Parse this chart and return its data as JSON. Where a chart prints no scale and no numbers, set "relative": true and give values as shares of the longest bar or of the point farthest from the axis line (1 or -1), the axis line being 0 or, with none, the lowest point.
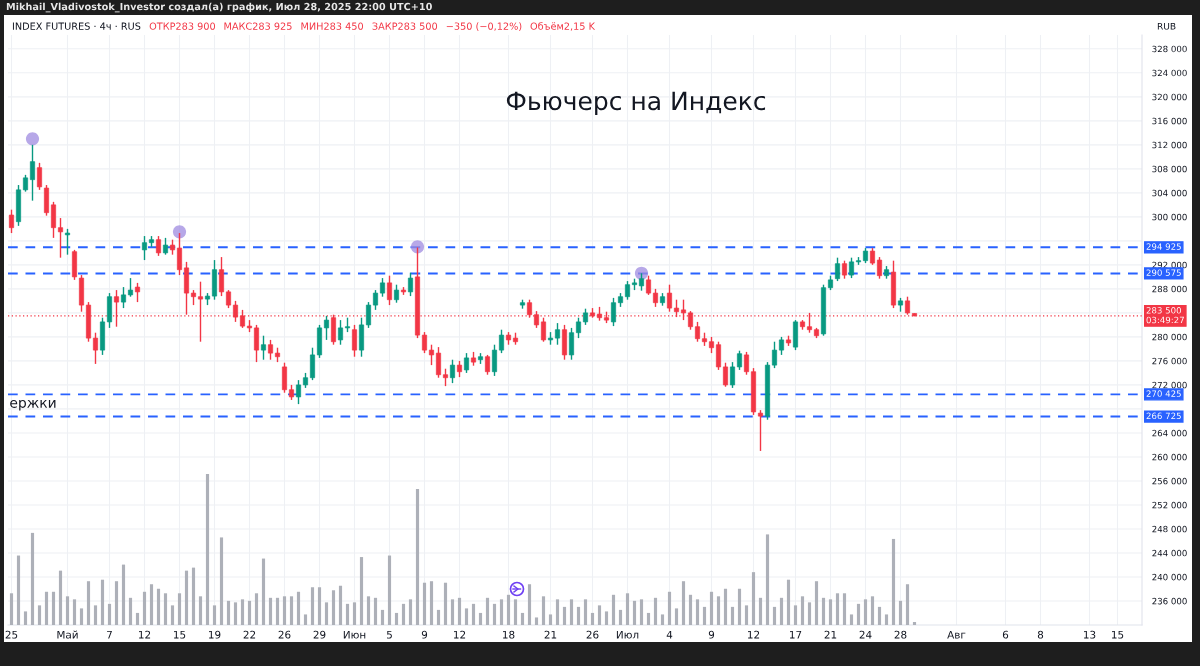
{
  "chart_data": [
    {
      "type": "candlestick",
      "title": "Фьючерс на Индекс",
      "ylabel": "RUB",
      "categories": [
        "25",
        null,
        null,
        null,
        null,
        null,
        null,
        null,
        "Май",
        null,
        null,
        null,
        null,
        null,
        "7",
        null,
        null,
        null,
        null,
        "12",
        null,
        null,
        null,
        null,
        "15",
        null,
        null,
        null,
        null,
        "19",
        null,
        null,
        null,
        null,
        "22",
        null,
        null,
        null,
        null,
        "26",
        null,
        null,
        null,
        null,
        "29",
        null,
        null,
        null,
        null,
        "Июн",
        null,
        null,
        null,
        null,
        "5",
        null,
        null,
        null,
        null,
        "9",
        null,
        null,
        null,
        null,
        "12",
        null,
        null,
        null,
        null,
        null,
        null,
        "18",
        null,
        null,
        null,
        null,
        null,
        "21",
        null,
        null,
        null,
        null,
        null,
        "26",
        null,
        null,
        null,
        null,
        "Июл",
        null,
        null,
        null,
        null,
        null,
        "4",
        null,
        null,
        null,
        null,
        null,
        "9",
        null,
        null,
        null,
        null,
        null,
        "12",
        null,
        null,
        null,
        null,
        null,
        "17",
        null,
        null,
        null,
        null,
        "21",
        null,
        null,
        null,
        null,
        "24",
        null,
        null,
        null,
        null,
        "28",
        null,
        null,
        null,
        null,
        null,
        null,
        null,
        "Авг",
        null,
        null,
        null,
        null,
        null,
        null,
        "6",
        null,
        null,
        null,
        null,
        "8",
        null,
        null,
        null,
        null,
        null,
        null,
        "13",
        null,
        null,
        null,
        "15",
        null,
        null,
        null
      ],
      "ohlc": [
        [
          300300,
          301200,
          297300,
          298200
        ],
        [
          299200,
          305300,
          298500,
          304500
        ],
        [
          304500,
          307000,
          304200,
          306500
        ],
        [
          306200,
          312000,
          302700,
          309200
        ],
        [
          308200,
          309000,
          304500,
          305000
        ],
        [
          304800,
          305300,
          300200,
          300700
        ],
        [
          302000,
          302500,
          296500,
          298200
        ],
        [
          298200,
          299800,
          293200,
          297500
        ],
        [
          297000,
          298000,
          293700,
          297300
        ],
        [
          294200,
          294500,
          289500,
          290000
        ],
        [
          289800,
          290300,
          284200,
          285300
        ],
        [
          285300,
          285800,
          279200,
          279800
        ],
        [
          279800,
          280700,
          275500,
          277800
        ],
        [
          277800,
          283200,
          277000,
          282500
        ],
        [
          282500,
          287300,
          281500,
          286700
        ],
        [
          286700,
          287800,
          281700,
          285800
        ],
        [
          285800,
          288300,
          284800,
          287000
        ],
        [
          287000,
          289800,
          286700,
          287800
        ],
        [
          288300,
          289000,
          285800,
          287500
        ],
        [
          294500,
          296800,
          292800,
          295700
        ],
        [
          295700,
          296800,
          295000,
          296200
        ],
        [
          296200,
          296800,
          293500,
          294000
        ],
        [
          294000,
          296500,
          293700,
          295300
        ],
        [
          295300,
          296200,
          293700,
          294500
        ],
        [
          294800,
          297300,
          290300,
          291200
        ],
        [
          291500,
          292500,
          283700,
          287300
        ],
        [
          287300,
          287800,
          285300,
          286700
        ],
        [
          286700,
          289200,
          279200,
          286300
        ],
        [
          286300,
          287300,
          285300,
          286800
        ],
        [
          286800,
          292800,
          286200,
          291200
        ],
        [
          291200,
          293300,
          286800,
          287500
        ],
        [
          287500,
          287800,
          284800,
          285300
        ],
        [
          285300,
          286000,
          282500,
          283300
        ],
        [
          283500,
          284500,
          281500,
          281800
        ],
        [
          281800,
          282800,
          280800,
          281500
        ],
        [
          281500,
          282000,
          275800,
          277800
        ],
        [
          277800,
          280200,
          276200,
          278700
        ],
        [
          278700,
          279500,
          276200,
          277300
        ],
        [
          277300,
          278200,
          275800,
          276700
        ],
        [
          275000,
          275700,
          270700,
          271200
        ],
        [
          271200,
          272000,
          269500,
          270000
        ],
        [
          270000,
          272800,
          268800,
          272000
        ],
        [
          272000,
          274000,
          271500,
          273200
        ],
        [
          273200,
          278200,
          272800,
          277000
        ],
        [
          277000,
          282000,
          276500,
          281500
        ],
        [
          281500,
          283500,
          279500,
          282800
        ],
        [
          283200,
          283700,
          278700,
          279200
        ],
        [
          279500,
          282800,
          278700,
          281500
        ],
        [
          281500,
          283200,
          280800,
          281700
        ],
        [
          281200,
          282000,
          276700,
          277800
        ],
        [
          277800,
          283200,
          276700,
          282000
        ],
        [
          282000,
          285800,
          281500,
          285300
        ],
        [
          285300,
          287800,
          284500,
          287300
        ],
        [
          287300,
          289800,
          286700,
          289000
        ],
        [
          289000,
          290200,
          285300,
          286200
        ],
        [
          286200,
          288700,
          285700,
          287800
        ],
        [
          287800,
          288300,
          287000,
          287500
        ],
        [
          287500,
          290700,
          286800,
          289800
        ],
        [
          290000,
          294900,
          279800,
          280300
        ],
        [
          280300,
          280800,
          277300,
          277800
        ],
        [
          277800,
          278700,
          275300,
          277000
        ],
        [
          277300,
          278300,
          273200,
          273700
        ],
        [
          273700,
          274700,
          271800,
          273200
        ],
        [
          273200,
          276200,
          272300,
          275300
        ],
        [
          275300,
          276000,
          273300,
          274200
        ],
        [
          274500,
          277300,
          274000,
          276500
        ],
        [
          276500,
          277500,
          275200,
          275800
        ],
        [
          276200,
          277300,
          275500,
          276700
        ],
        [
          276700,
          277000,
          273700,
          274200
        ],
        [
          274200,
          278700,
          273500,
          277800
        ],
        [
          277800,
          281200,
          277300,
          280300
        ],
        [
          280300,
          280800,
          278700,
          279500
        ],
        [
          279800,
          280700,
          278700,
          279200
        ],
        [
          285300,
          286200,
          284700,
          285700
        ],
        [
          285700,
          286200,
          283200,
          283700
        ],
        [
          283700,
          284300,
          281500,
          282000
        ],
        [
          282500,
          283200,
          279200,
          279500
        ],
        [
          279500,
          280800,
          278700,
          279800
        ],
        [
          279800,
          282300,
          278700,
          281200
        ],
        [
          281200,
          282000,
          276200,
          277000
        ],
        [
          277000,
          281500,
          276200,
          280700
        ],
        [
          280700,
          283200,
          279800,
          282500
        ],
        [
          282500,
          284700,
          282000,
          284000
        ],
        [
          284000,
          284800,
          283200,
          283500
        ],
        [
          283800,
          285000,
          282700,
          283200
        ],
        [
          283200,
          284200,
          282300,
          282800
        ],
        [
          282500,
          286500,
          281800,
          285700
        ],
        [
          285700,
          287300,
          285000,
          286700
        ],
        [
          286700,
          289300,
          286200,
          288700
        ],
        [
          288700,
          289700,
          287800,
          289000
        ],
        [
          288500,
          290600,
          287700,
          289700
        ],
        [
          289500,
          290200,
          287000,
          287300
        ],
        [
          287300,
          288000,
          285000,
          285700
        ],
        [
          285700,
          287300,
          285200,
          286700
        ],
        [
          287300,
          288700,
          284200,
          284800
        ],
        [
          284800,
          286200,
          283300,
          284200
        ],
        [
          284500,
          286200,
          282800,
          284000
        ],
        [
          284000,
          284300,
          281200,
          281700
        ],
        [
          281700,
          282500,
          279200,
          279700
        ],
        [
          279700,
          280700,
          278500,
          279200
        ],
        [
          279200,
          280000,
          277300,
          278200
        ],
        [
          278700,
          279200,
          274500,
          275000
        ],
        [
          275000,
          275700,
          271700,
          272000
        ],
        [
          272000,
          275800,
          271500,
          275000
        ],
        [
          275000,
          277700,
          274500,
          277200
        ],
        [
          277000,
          277500,
          273700,
          274200
        ],
        [
          274200,
          274800,
          267000,
          267500
        ],
        [
          267300,
          267800,
          261000,
          266800
        ],
        [
          266800,
          275800,
          266200,
          275300
        ],
        [
          275300,
          279200,
          274800,
          277800
        ],
        [
          277800,
          280000,
          277000,
          279500
        ],
        [
          279500,
          280200,
          278500,
          279000
        ],
        [
          278300,
          282800,
          277800,
          282500
        ],
        [
          282500,
          282800,
          281200,
          281700
        ],
        [
          281700,
          284000,
          280700,
          281200
        ],
        [
          281200,
          281500,
          279800,
          280200
        ],
        [
          280500,
          288700,
          280200,
          288200
        ],
        [
          288200,
          290200,
          287800,
          289500
        ],
        [
          289700,
          293200,
          289300,
          292200
        ],
        [
          292200,
          292700,
          289700,
          290300
        ],
        [
          290300,
          293200,
          289800,
          292500
        ],
        [
          292500,
          293300,
          292000,
          292700
        ],
        [
          292700,
          294800,
          292300,
          294300
        ],
        [
          294300,
          294800,
          292000,
          292300
        ],
        [
          292800,
          293300,
          289700,
          290200
        ],
        [
          290200,
          291800,
          289700,
          291200
        ],
        [
          290800,
          292700,
          284800,
          285300
        ],
        [
          285300,
          286500,
          284200,
          286000
        ],
        [
          286000,
          286700,
          283700,
          284000
        ],
        [
          283900,
          283925,
          283450,
          283500
        ],
        null,
        null,
        null,
        null,
        null,
        null,
        null,
        null,
        null,
        null,
        null,
        null,
        null,
        null,
        null,
        null,
        null,
        null,
        null,
        null,
        null,
        null,
        null,
        null,
        null,
        null,
        null,
        null,
        null,
        null,
        null,
        null
      ],
      "colors": [
        "#f23645",
        "#089981",
        "#089981",
        "#089981",
        "#f23645",
        "#f23645",
        "#f23645",
        "#f23645",
        "#089981",
        "#f23645",
        "#f23645",
        "#f23645",
        "#f23645",
        "#089981",
        "#089981",
        "#f23645",
        "#089981",
        "#089981",
        "#f23645",
        "#089981",
        "#089981",
        "#f23645",
        "#089981",
        "#f23645",
        "#f23645",
        "#f23645",
        "#f23645",
        "#f23645",
        "#089981",
        "#089981",
        "#f23645",
        "#f23645",
        "#f23645",
        "#f23645",
        "#f23645",
        "#f23645",
        "#089981",
        "#f23645",
        "#f23645",
        "#f23645",
        "#f23645",
        "#089981",
        "#089981",
        "#089981",
        "#089981",
        "#089981",
        "#f23645",
        "#089981",
        "#089981",
        "#f23645",
        "#089981",
        "#089981",
        "#089981",
        "#089981",
        "#f23645",
        "#089981",
        "#f23645",
        "#089981",
        "#f23645",
        "#f23645",
        "#f23645",
        "#f23645",
        "#f23645",
        "#089981",
        "#f23645",
        "#089981",
        "#f23645",
        "#089981",
        "#f23645",
        "#089981",
        "#089981",
        "#f23645",
        "#f23645",
        "#089981",
        "#f23645",
        "#f23645",
        "#f23645",
        "#089981",
        "#089981",
        "#f23645",
        "#089981",
        "#089981",
        "#089981",
        "#f23645",
        "#f23645",
        "#f23645",
        "#089981",
        "#089981",
        "#089981",
        "#089981",
        "#089981",
        "#f23645",
        "#f23645",
        "#089981",
        "#f23645",
        "#f23645",
        "#f23645",
        "#f23645",
        "#f23645",
        "#f23645",
        "#f23645",
        "#f23645",
        "#f23645",
        "#089981",
        "#089981",
        "#f23645",
        "#f23645",
        "#f23645",
        "#089981",
        "#089981",
        "#089981",
        "#f23645",
        "#089981",
        "#f23645",
        "#f23645",
        "#f23645",
        "#089981",
        "#089981",
        "#089981",
        "#f23645",
        "#089981",
        "#089981",
        "#089981",
        "#f23645",
        "#f23645",
        "#089981",
        "#f23645",
        "#089981",
        "#f23645",
        "#f23645",
        null,
        null,
        null,
        null,
        null,
        null,
        null,
        null,
        null,
        null,
        null,
        null,
        null,
        null,
        null,
        null,
        null,
        null,
        null,
        null,
        null,
        null,
        null,
        null,
        null,
        null,
        null,
        null,
        null,
        null,
        null,
        null
      ],
      "series": [
        {
          "type": "scatter",
          "color": "#9f8be0",
          "marker": "circle",
          "values": [
            null,
            null,
            null,
            313000,
            null,
            null,
            null,
            null,
            null,
            null,
            null,
            null,
            null,
            null,
            null,
            null,
            null,
            null,
            null,
            null,
            null,
            null,
            null,
            null,
            297500,
            null,
            null,
            null,
            null,
            null,
            null,
            null,
            null,
            null,
            null,
            null,
            null,
            null,
            null,
            null,
            null,
            null,
            null,
            null,
            null,
            null,
            null,
            null,
            null,
            null,
            null,
            null,
            null,
            null,
            null,
            null,
            null,
            null,
            295000,
            null,
            null,
            null,
            null,
            null,
            null,
            null,
            null,
            null,
            null,
            null,
            null,
            null,
            null,
            null,
            null,
            null,
            null,
            null,
            null,
            null,
            null,
            null,
            null,
            null,
            null,
            null,
            null,
            null,
            null,
            null,
            290600,
            null,
            null,
            null,
            null,
            null,
            null,
            null,
            null,
            null,
            null,
            null,
            null,
            null,
            null,
            null,
            null,
            null,
            null,
            null,
            null,
            null,
            null,
            null,
            null,
            null,
            null,
            null,
            null,
            null,
            null,
            null,
            null,
            null,
            null,
            null,
            null,
            null,
            null,
            null,
            null,
            null,
            null,
            null,
            null,
            null,
            null,
            null,
            null,
            null,
            null,
            null,
            null,
            null,
            null,
            null,
            null,
            null,
            null,
            null,
            null,
            null,
            null,
            null,
            null,
            null,
            null,
            null,
            null,
            null,
            null,
            null
          ]
        }
      ],
      "ylim": [
        232000,
        330300
      ],
      "yticks": [
        {
          "value": 236000,
          "label": "236 000"
        },
        {
          "value": 240000,
          "label": "240 000"
        },
        {
          "value": 244000,
          "label": "244 000"
        },
        {
          "value": 248000,
          "label": "248 000"
        },
        {
          "value": 252000,
          "label": "252 000"
        },
        {
          "value": 256000,
          "label": "256 000"
        },
        {
          "value": 260000,
          "label": "260 000"
        },
        {
          "value": 264000,
          "label": "264 000"
        },
        {
          "value": 268000,
          "label": null
        },
        {
          "value": 272000,
          "label": "272 000"
        },
        {
          "value": 276000,
          "label": "276 000"
        },
        {
          "value": 280000,
          "label": "280 000"
        },
        {
          "value": 284000,
          "label": null
        },
        {
          "value": 288000,
          "label": "288 000"
        },
        {
          "value": 292000,
          "label": "292 000"
        },
        {
          "value": 296000,
          "label": null
        },
        {
          "value": 300000,
          "label": "300 000"
        },
        {
          "value": 304000,
          "label": "304 000"
        },
        {
          "value": 308000,
          "label": "308 000"
        },
        {
          "value": 312000,
          "label": "312 000"
        },
        {
          "value": 316000,
          "label": "316 000"
        },
        {
          "value": 320000,
          "label": "320 000"
        },
        {
          "value": 324000,
          "label": "324 000"
        },
        {
          "value": 328000,
          "label": "328 000"
        }
      ],
      "grid": true,
      "ref_lines": [
        {
          "axis": "y",
          "value": 294925,
          "label": "294 925",
          "color": "#2962ff",
          "line_style": "dashed"
        },
        {
          "axis": "y",
          "value": 290575,
          "label": "290 575",
          "color": "#2962ff",
          "line_style": "dashed"
        },
        {
          "axis": "y",
          "value": 283500,
          "label": "283 500\n03:49:27",
          "color": "#f23645",
          "line_style": "dotted"
        },
        {
          "axis": "y",
          "value": 270425,
          "label": "270 425",
          "color": "#2962ff",
          "line_style": "dashed"
        },
        {
          "axis": "y",
          "value": 266725,
          "label": "266 725",
          "color": "#2962ff",
          "line_style": "dashed"
        }
      ],
      "annotations": [
        "Mikhail_Vladivostok_Investor создал(а) график, Июл 28, 2025 22:00 UTC+10",
        "INDEX FUTURES · 4ч · RUS",
        "ОТКР283 900",
        "МАКС283 925",
        "МИН283 450",
        "ЗАКР283 500",
        "−350 (−0,12%)",
        "Объём2,15 K",
        {
          "text": "ержки",
          "y": 270425
        }
      ]
    },
    {
      "type": "bar",
      "relative": true,
      "color": "#adb0b8",
      "categories": [
        null,
        null,
        null,
        null,
        null,
        null,
        null,
        null,
        null,
        null,
        null,
        null,
        null,
        null,
        null,
        null,
        null,
        null,
        null,
        null,
        null,
        null,
        null,
        null,
        null,
        null,
        null,
        null,
        null,
        null,
        null,
        null,
        null,
        null,
        null,
        null,
        null,
        null,
        null,
        null,
        null,
        null,
        null,
        null,
        null,
        null,
        null,
        null,
        null,
        null,
        null,
        null,
        null,
        null,
        null,
        null,
        null,
        null,
        null,
        null,
        null,
        null,
        null,
        null,
        null,
        null,
        null,
        null,
        null,
        null,
        null,
        null,
        null,
        null,
        null,
        null,
        null,
        null,
        null,
        null,
        null,
        null,
        null,
        null,
        null,
        null,
        null,
        null,
        null,
        null,
        null,
        null,
        null,
        null,
        null,
        null,
        null,
        null,
        null,
        null,
        null,
        null,
        null,
        null,
        null,
        null,
        null,
        null,
        null,
        null,
        null,
        null,
        null,
        null,
        null,
        null,
        null,
        null,
        null,
        null,
        null,
        null,
        null,
        null,
        null,
        null,
        null,
        null,
        null,
        null,
        null,
        null,
        null,
        null,
        null,
        null,
        null,
        null,
        null,
        null,
        null,
        null,
        null,
        null,
        null,
        null,
        null,
        null,
        null,
        null,
        null,
        null,
        null,
        null,
        null,
        null,
        null,
        null,
        null,
        null,
        null,
        null
      ],
      "values": [
        0.21,
        0.46,
        0.09,
        0.61,
        0.13,
        0.22,
        0.22,
        0.36,
        0.19,
        0.17,
        0.11,
        0.29,
        0.13,
        0.3,
        0.14,
        0.29,
        0.4,
        0.18,
        0.08,
        0.22,
        0.27,
        0.24,
        0.21,
        0.13,
        0.21,
        0.36,
        0.38,
        0.19,
        1.0,
        0.13,
        0.58,
        0.16,
        0.15,
        0.17,
        0.16,
        0.21,
        0.44,
        0.18,
        0.18,
        0.19,
        0.19,
        0.22,
        0.07,
        0.25,
        0.25,
        0.15,
        0.23,
        0.26,
        0.14,
        0.15,
        0.45,
        0.19,
        0.18,
        0.1,
        0.46,
        0.08,
        0.14,
        0.17,
        0.9,
        0.28,
        0.29,
        0.1,
        0.28,
        0.17,
        0.18,
        0.11,
        0.14,
        0.08,
        0.18,
        0.14,
        0.17,
        0.2,
        0.17,
        0.08,
        0.27,
        0.05,
        0.19,
        0.07,
        0.17,
        0.12,
        0.17,
        0.12,
        0.17,
        0.08,
        0.13,
        0.09,
        0.2,
        0.1,
        0.21,
        0.16,
        0.17,
        0.08,
        0.18,
        0.07,
        0.22,
        0.11,
        0.29,
        0.2,
        0.17,
        0.12,
        0.22,
        0.19,
        0.24,
        0.12,
        0.24,
        0.13,
        0.35,
        0.18,
        0.6,
        0.12,
        0.18,
        0.3,
        0.13,
        0.19,
        0.15,
        0.29,
        0.18,
        0.17,
        0.21,
        0.21,
        0.07,
        0.14,
        0.17,
        0.19,
        0.12,
        0.07,
        0.57,
        0.16,
        0.27,
        0.02,
        null,
        null,
        null,
        null,
        null,
        null,
        null,
        null,
        null,
        null,
        null,
        null,
        null,
        null,
        null,
        null,
        null,
        null,
        null,
        null,
        null,
        null,
        null,
        null,
        null,
        null,
        null,
        null,
        null,
        null,
        null,
        null
      ]
    }
  ]
}
